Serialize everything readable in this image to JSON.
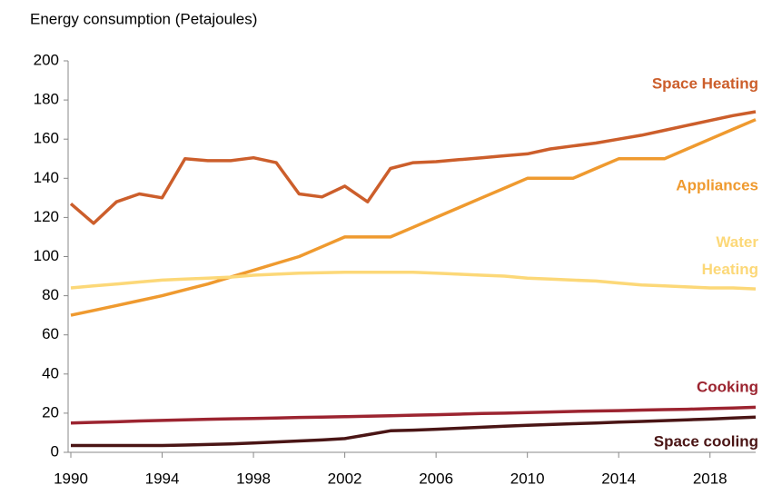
{
  "chart_data": {
    "type": "line",
    "y_axis_label": "Energy consumption (Petajoules)",
    "x": [
      1990,
      1991,
      1992,
      1993,
      1994,
      1995,
      1996,
      1997,
      1998,
      1999,
      2000,
      2001,
      2002,
      2003,
      2004,
      2005,
      2006,
      2007,
      2008,
      2009,
      2010,
      2011,
      2012,
      2013,
      2014,
      2015,
      2016,
      2017,
      2018,
      2019,
      2020
    ],
    "xlim": [
      1990,
      2020
    ],
    "xticks": [
      1990,
      1994,
      1998,
      2002,
      2006,
      2010,
      2014,
      2018
    ],
    "ylim": [
      0,
      200
    ],
    "yticks": [
      0,
      20,
      40,
      60,
      80,
      100,
      120,
      140,
      160,
      180,
      200
    ],
    "series": [
      {
        "name": "Space Heating",
        "color": "#cc5e2b",
        "values": [
          127,
          117,
          128,
          132,
          130,
          150,
          149,
          149,
          150.5,
          148,
          132,
          130.5,
          136,
          128,
          145,
          148,
          148.5,
          149.5,
          150.5,
          151.5,
          152.5,
          155,
          156.5,
          158,
          160,
          162,
          164.5,
          167,
          169.5,
          172,
          174
        ]
      },
      {
        "name": "Appliances",
        "color": "#ef9a2f",
        "values": [
          70,
          72.5,
          75,
          77.5,
          80,
          83,
          86,
          89.5,
          93,
          96.5,
          100,
          105,
          110,
          110,
          110,
          115,
          120,
          125,
          130,
          135,
          140,
          140,
          140,
          145,
          150,
          150,
          150,
          155,
          160,
          165,
          170
        ]
      },
      {
        "name": "Water Heating",
        "color": "#fcd878",
        "values": [
          84,
          85,
          86,
          87,
          88,
          88.5,
          89,
          89.5,
          90.5,
          91,
          91.5,
          91.8,
          92,
          92,
          92,
          92,
          91.5,
          91,
          90.5,
          90,
          89,
          88.5,
          88,
          87.5,
          86.5,
          85.5,
          85,
          84.5,
          84,
          84,
          83.5
        ]
      },
      {
        "name": "Cooking",
        "color": "#9c2430",
        "values": [
          15,
          15.3,
          15.6,
          16,
          16.3,
          16.6,
          16.9,
          17.1,
          17.3,
          17.5,
          17.8,
          18,
          18.2,
          18.4,
          18.7,
          19,
          19.2,
          19.5,
          19.8,
          20,
          20.3,
          20.6,
          20.9,
          21.1,
          21.3,
          21.6,
          21.8,
          22,
          22.3,
          22.6,
          23
        ]
      },
      {
        "name": "Space cooling",
        "color": "#4a1515",
        "values": [
          3.5,
          3.5,
          3.5,
          3.5,
          3.5,
          3.7,
          4,
          4.3,
          4.8,
          5.3,
          5.8,
          6.3,
          7,
          9,
          11,
          11.3,
          11.8,
          12.3,
          12.8,
          13.3,
          13.8,
          14.2,
          14.6,
          15,
          15.4,
          15.8,
          16.2,
          16.6,
          17,
          17.5,
          18
        ]
      }
    ]
  }
}
